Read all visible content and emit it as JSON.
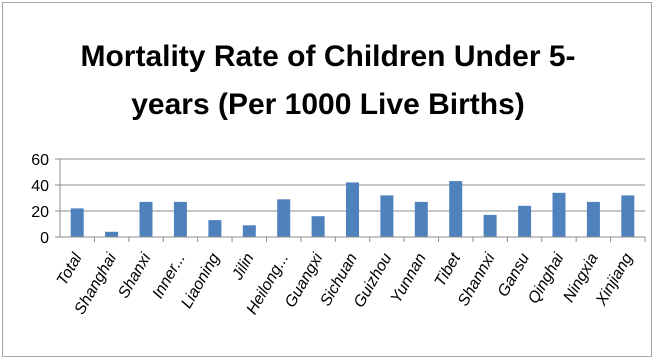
{
  "chart_data": {
    "type": "bar",
    "title_lines": [
      "Mortality Rate of Children Under 5-",
      "years (Per 1000 Live Births)"
    ],
    "categories": [
      "Total",
      "Shanghai",
      "Shanxi",
      "Inner...",
      "Liaoning",
      "Jilin",
      "Heilong...",
      "Guangxi",
      "Sichuan",
      "Guizhou",
      "Yunnan",
      "Tibet",
      "Shannxi",
      "Gansu",
      "Qinghai",
      "Ningxia",
      "Xinjiang"
    ],
    "values": [
      22,
      4,
      27,
      27,
      13,
      9,
      29,
      16,
      42,
      32,
      27,
      43,
      17,
      24,
      34,
      27,
      32
    ],
    "ylim": [
      0,
      60
    ],
    "yticks": [
      "0",
      "20",
      "40",
      "60"
    ],
    "xlabel": "",
    "ylabel": "",
    "grid": "horizontal",
    "legend": "none",
    "bar_color": "#4f81bd",
    "grid_color": "#8c8c8c"
  }
}
